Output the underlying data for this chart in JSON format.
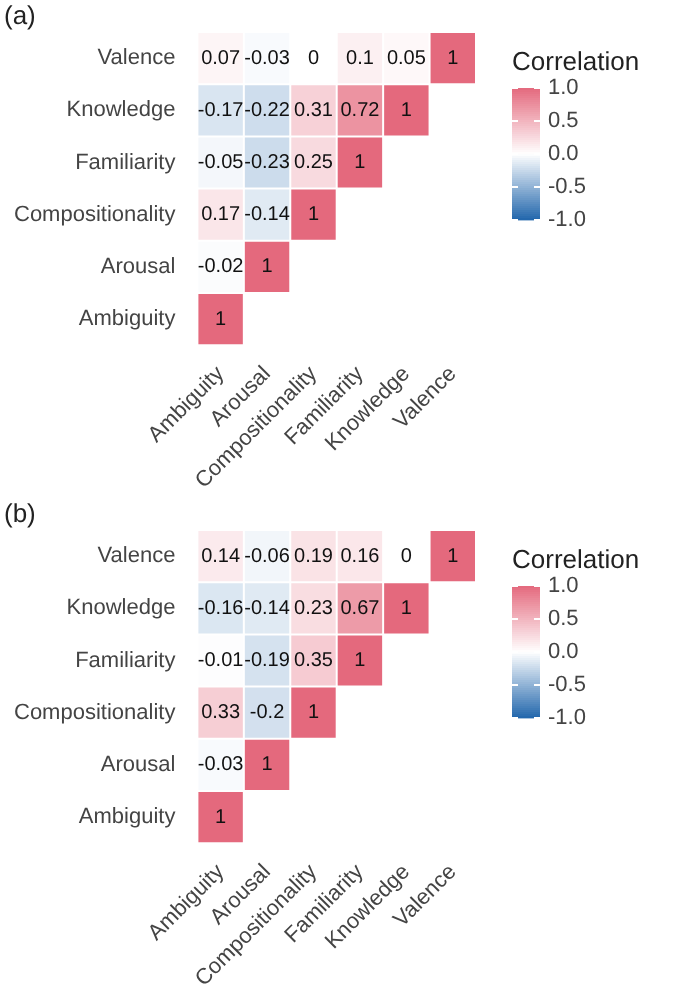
{
  "chart_data": [
    {
      "type": "heatmap",
      "annotations": [
        "(a)"
      ],
      "legend_title": "Correlation",
      "categories": [
        "Ambiguity",
        "Arousal",
        "Compositionality",
        "Familiarity",
        "Knowledge",
        "Valence"
      ],
      "y_categories": [
        "Valence",
        "Knowledge",
        "Familiarity",
        "Compositionality",
        "Arousal",
        "Ambiguity"
      ],
      "cells": [
        [
          0.07,
          -0.03,
          0,
          0.1,
          0.05,
          1
        ],
        [
          -0.17,
          -0.22,
          0.31,
          0.72,
          1,
          null
        ],
        [
          -0.05,
          -0.23,
          0.25,
          1,
          null,
          null
        ],
        [
          0.17,
          -0.14,
          1,
          null,
          null,
          null
        ],
        [
          -0.02,
          1,
          null,
          null,
          null,
          null
        ],
        [
          1,
          null,
          null,
          null,
          null,
          null
        ]
      ],
      "clim": [
        -1,
        1
      ],
      "cticks": [
        {
          "value": 1,
          "label": "1.0"
        },
        {
          "value": 0.5,
          "label": "0.5"
        },
        {
          "value": 0,
          "label": "0.0"
        },
        {
          "value": -0.5,
          "label": "-0.5"
        },
        {
          "value": -1,
          "label": "-1.0"
        }
      ],
      "data_labels": true
    },
    {
      "type": "heatmap",
      "annotations": [
        "(b)"
      ],
      "legend_title": "Correlation",
      "categories": [
        "Ambiguity",
        "Arousal",
        "Compositionality",
        "Familiarity",
        "Knowledge",
        "Valence"
      ],
      "y_categories": [
        "Valence",
        "Knowledge",
        "Familiarity",
        "Compositionality",
        "Arousal",
        "Ambiguity"
      ],
      "cells": [
        [
          0.14,
          -0.06,
          0.19,
          0.16,
          0,
          1
        ],
        [
          -0.16,
          -0.14,
          0.23,
          0.67,
          1,
          null
        ],
        [
          -0.01,
          -0.19,
          0.35,
          1,
          null,
          null
        ],
        [
          0.33,
          -0.2,
          1,
          null,
          null,
          null
        ],
        [
          -0.03,
          1,
          null,
          null,
          null,
          null
        ],
        [
          1,
          null,
          null,
          null,
          null,
          null
        ]
      ],
      "clim": [
        -1,
        1
      ],
      "cticks": [
        {
          "value": 1,
          "label": "1.0"
        },
        {
          "value": 0.5,
          "label": "0.5"
        },
        {
          "value": 0,
          "label": "0.0"
        },
        {
          "value": -0.5,
          "label": "-0.5"
        },
        {
          "value": -1,
          "label": "-1.0"
        }
      ],
      "data_labels": true
    }
  ]
}
